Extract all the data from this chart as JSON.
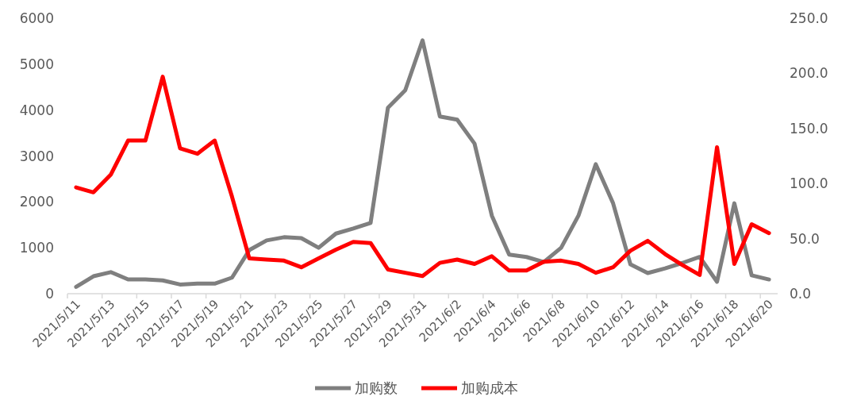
{
  "chart_data": {
    "type": "line",
    "categories": [
      "2021/5/11",
      null,
      "2021/5/13",
      null,
      "2021/5/15",
      null,
      "2021/5/17",
      null,
      "2021/5/19",
      null,
      "2021/5/21",
      null,
      "2021/5/23",
      null,
      "2021/5/25",
      null,
      "2021/5/27",
      null,
      "2021/5/29",
      null,
      "2021/5/31",
      null,
      "2021/6/2",
      null,
      "2021/6/4",
      null,
      "2021/6/6",
      null,
      "2021/6/8",
      null,
      "2021/6/10",
      null,
      "2021/6/12",
      null,
      "2021/6/14",
      null,
      "2021/6/16",
      null,
      "2021/6/18",
      null,
      "2021/6/20"
    ],
    "series": [
      {
        "name": "加购数",
        "color": "#7f7f7f",
        "values": [
          150,
          380,
          470,
          310,
          310,
          290,
          200,
          220,
          220,
          350,
          950,
          1160,
          1230,
          1210,
          1000,
          1310,
          1420,
          1540,
          4050,
          4430,
          5520,
          3860,
          3790,
          3270,
          1700,
          850,
          800,
          690,
          1000,
          1700,
          2820,
          1970,
          640,
          450,
          550,
          670,
          800,
          260,
          1970,
          400,
          310
        ]
      },
      {
        "name": "加购成本",
        "color": "#ff0000",
        "axis": "y2",
        "values": [
          96.5,
          92,
          108,
          139,
          139,
          197,
          132,
          127,
          139,
          88,
          32,
          31,
          30,
          24,
          32,
          40,
          47,
          46,
          22,
          19,
          16,
          28,
          31,
          27,
          34,
          21,
          21,
          29,
          30,
          27,
          19,
          24,
          39,
          48,
          36,
          26,
          17,
          133,
          27,
          63,
          55
        ]
      }
    ],
    "ylim": [
      0,
      6000
    ],
    "yticks": [
      0,
      1000,
      2000,
      3000,
      4000,
      5000,
      6000
    ],
    "y2lim": [
      0,
      250
    ],
    "y2ticks": [
      {
        "value": 0,
        "label": "0.0"
      },
      {
        "value": 50,
        "label": "50.0"
      },
      {
        "value": 100,
        "label": "100.0"
      },
      {
        "value": 150,
        "label": "150.0"
      },
      {
        "value": 200,
        "label": "200.0"
      },
      {
        "value": 250,
        "label": "250.0"
      }
    ],
    "legend": "bottom",
    "grid": false,
    "marker": "none",
    "line_style": "solid"
  }
}
